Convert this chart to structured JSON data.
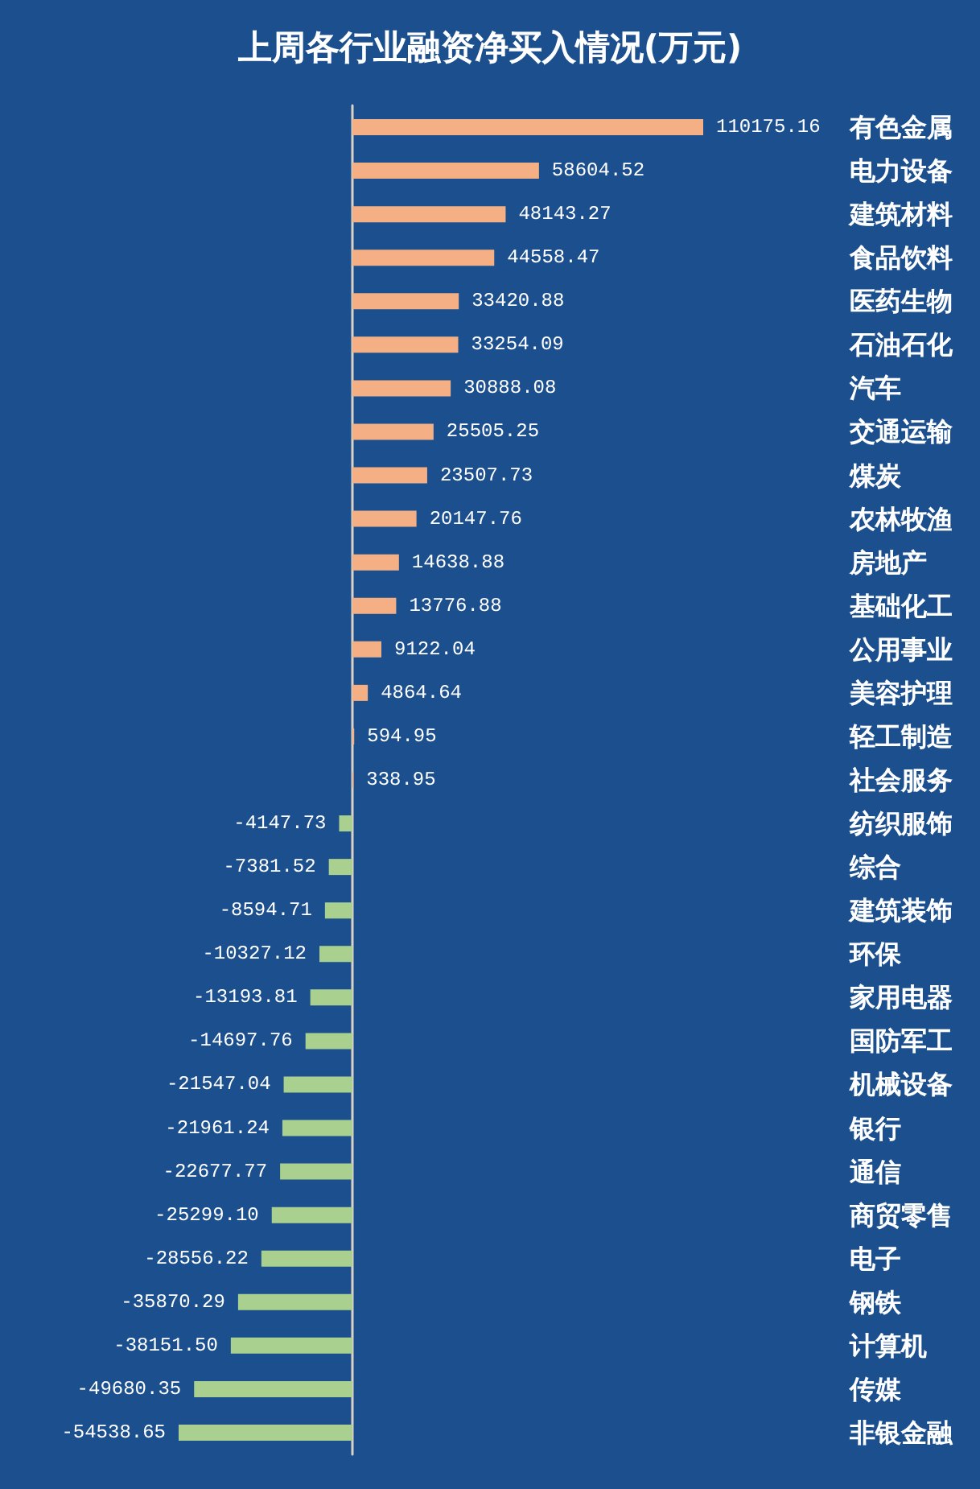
{
  "chart_data": {
    "type": "bar",
    "orientation": "horizontal",
    "title": "上周各行业融资净买入情况(万元)",
    "categories": [
      "有色金属",
      "电力设备",
      "建筑材料",
      "食品饮料",
      "医药生物",
      "石油石化",
      "汽车",
      "交通运输",
      "煤炭",
      "农林牧渔",
      "房地产",
      "基础化工",
      "公用事业",
      "美容护理",
      "轻工制造",
      "社会服务",
      "纺织服饰",
      "综合",
      "建筑装饰",
      "环保",
      "家用电器",
      "国防军工",
      "机械设备",
      "银行",
      "通信",
      "商贸零售",
      "电子",
      "钢铁",
      "计算机",
      "传媒",
      "非银金融"
    ],
    "values": [
      110175.16,
      58604.52,
      48143.27,
      44558.47,
      33420.88,
      33254.09,
      30888.08,
      25505.25,
      23507.73,
      20147.76,
      14638.88,
      13776.88,
      9122.04,
      4864.64,
      594.95,
      338.95,
      -4147.73,
      -7381.52,
      -8594.71,
      -10327.12,
      -13193.81,
      -14697.76,
      -21547.04,
      -21961.24,
      -22677.77,
      -25299.1,
      -28556.22,
      -35870.29,
      -38151.5,
      -49680.35,
      -54538.65
    ],
    "value_labels": [
      "110175.16",
      "58604.52",
      "48143.27",
      "44558.47",
      "33420.88",
      "33254.09",
      "30888.08",
      "25505.25",
      "23507.73",
      "20147.76",
      "14638.88",
      "13776.88",
      "9122.04",
      "4864.64",
      "594.95",
      "338.95",
      "-4147.73",
      "-7381.52",
      "-8594.71",
      "-10327.12",
      "-13193.81",
      "-14697.76",
      "-21547.04",
      "-21961.24",
      "-22677.77",
      "-25299.10",
      "-28556.22",
      "-35870.29",
      "-38151.50",
      "-49680.35",
      "-54538.65"
    ],
    "colors": [
      "#f4b084",
      "#f4b084",
      "#f4b084",
      "#f4b084",
      "#f4b084",
      "#f4b084",
      "#f4b084",
      "#f4b084",
      "#f4b084",
      "#f4b084",
      "#f4b084",
      "#f4b084",
      "#f4b084",
      "#f4b084",
      "#f4b084",
      "#f4b084",
      "#a9d08e",
      "#a9d08e",
      "#a9d08e",
      "#a9d08e",
      "#a9d08e",
      "#a9d08e",
      "#a9d08e",
      "#a9d08e",
      "#a9d08e",
      "#a9d08e",
      "#a9d08e",
      "#a9d08e",
      "#a9d08e",
      "#a9d08e",
      "#a9d08e"
    ]
  }
}
